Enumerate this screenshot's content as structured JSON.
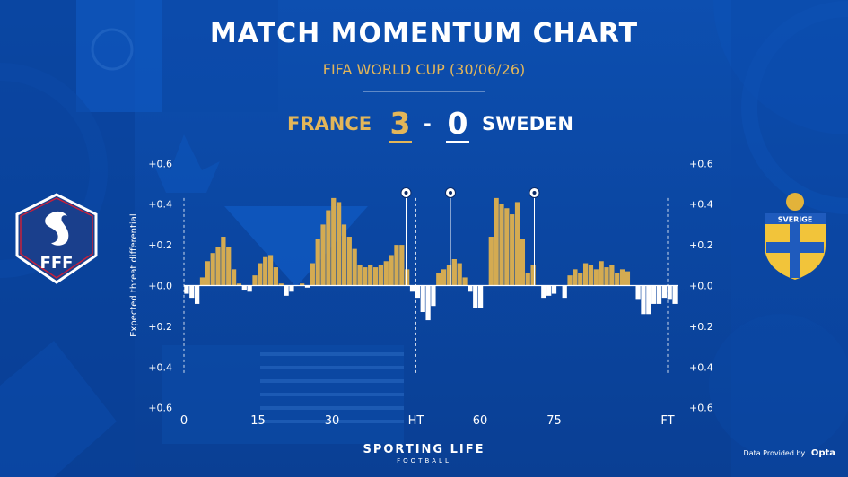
{
  "title": "MATCH MOMENTUM CHART",
  "subtitle": "FIFA WORLD CUP (30/06/26)",
  "match": {
    "home_team": "FRANCE",
    "home_score": "3",
    "separator": "-",
    "away_score": "0",
    "away_team": "SWEDEN"
  },
  "home_crest_text": "FFF",
  "away_crest_text": "SVERIGE",
  "footer": {
    "brand": "SPORTING LIFE",
    "sub": "FOOTBALL",
    "credit_prefix": "Data Provided by",
    "credit_brand": "Opta"
  },
  "colors": {
    "home": "#d4ab52",
    "away": "#ffffff",
    "background": "#0b47a3",
    "accent": "#e3b659"
  },
  "chart_data": {
    "type": "bar",
    "ylabel": "Expected threat differential",
    "ylim": [
      -0.6,
      0.6
    ],
    "y_ticks": [
      -0.6,
      -0.4,
      -0.2,
      0.0,
      0.2,
      0.4,
      0.6
    ],
    "y_tick_labels": [
      "+0.6",
      "+0.4",
      "+0.2",
      "+0.0",
      "+0.2",
      "+0.4",
      "+0.6"
    ],
    "xlim": [
      0,
      100
    ],
    "x_ticks": [
      {
        "x": 0,
        "label": "0"
      },
      {
        "x": 15,
        "label": "15"
      },
      {
        "x": 30,
        "label": "30"
      },
      {
        "x": 47,
        "label": "HT"
      },
      {
        "x": 60,
        "label": "60"
      },
      {
        "x": 75,
        "label": "75"
      },
      {
        "x": 98,
        "label": "FT"
      }
    ],
    "period_lines": [
      0,
      47,
      98
    ],
    "goals": [
      {
        "minute": 45,
        "label": "goal-1"
      },
      {
        "minute": 54,
        "label": "goal-2"
      },
      {
        "minute": 71,
        "label": "goal-3"
      }
    ],
    "values": [
      -0.04,
      -0.06,
      -0.09,
      0.04,
      0.12,
      0.16,
      0.19,
      0.24,
      0.19,
      0.08,
      0.01,
      -0.02,
      -0.03,
      0.05,
      0.11,
      0.14,
      0.15,
      0.09,
      0.01,
      -0.05,
      -0.03,
      0.0,
      0.01,
      -0.01,
      0.11,
      0.23,
      0.3,
      0.37,
      0.43,
      0.41,
      0.3,
      0.24,
      0.18,
      0.1,
      0.09,
      0.1,
      0.09,
      0.1,
      0.12,
      0.15,
      0.2,
      0.2,
      0.08,
      -0.03,
      -0.06,
      -0.13,
      -0.17,
      -0.1,
      0.06,
      0.08,
      0.1,
      0.13,
      0.11,
      0.04,
      -0.03,
      -0.11,
      -0.11,
      0.0,
      0.24,
      0.43,
      0.4,
      0.38,
      0.35,
      0.41,
      0.23,
      0.06,
      0.1,
      0.0,
      -0.06,
      -0.05,
      -0.04,
      0.0,
      -0.06,
      0.05,
      0.08,
      0.06,
      0.11,
      0.1,
      0.08,
      0.12,
      0.09,
      0.1,
      0.06,
      0.08,
      0.07,
      0.0,
      -0.07,
      -0.14,
      -0.14,
      -0.09,
      -0.09,
      -0.06,
      -0.07,
      -0.09
    ]
  }
}
